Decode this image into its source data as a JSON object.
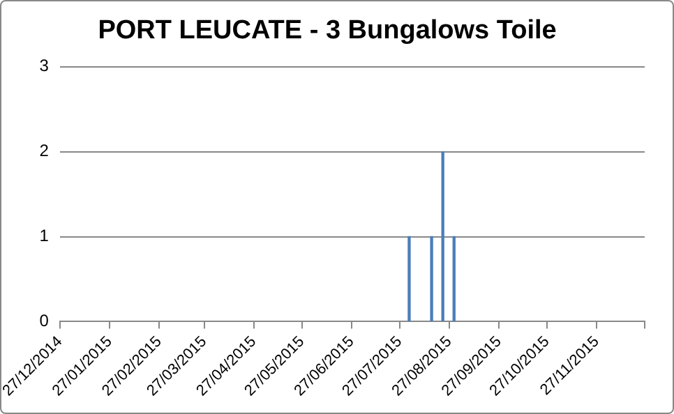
{
  "chart_data": {
    "type": "bar",
    "title": "PORT LEUCATE - 3 Bungalows Toile",
    "x": [
      "2015-08-02",
      "2015-08-16",
      "2015-08-23",
      "2015-08-30"
    ],
    "values": [
      1,
      1,
      2,
      1
    ],
    "color": "#4a7ebb",
    "xlim": [
      "2014-12-27",
      "2015-12-27"
    ],
    "xticks": [
      {
        "value": "2014-12-27",
        "label": "27/12/2014"
      },
      {
        "value": "2015-01-27",
        "label": "27/01/2015"
      },
      {
        "value": "2015-02-27",
        "label": "27/02/2015"
      },
      {
        "value": "2015-03-27",
        "label": "27/03/2015"
      },
      {
        "value": "2015-04-27",
        "label": "27/04/2015"
      },
      {
        "value": "2015-05-27",
        "label": "27/05/2015"
      },
      {
        "value": "2015-06-27",
        "label": "27/06/2015"
      },
      {
        "value": "2015-07-27",
        "label": "27/07/2015"
      },
      {
        "value": "2015-08-27",
        "label": "27/08/2015"
      },
      {
        "value": "2015-09-27",
        "label": "27/09/2015"
      },
      {
        "value": "2015-10-27",
        "label": "27/10/2015"
      },
      {
        "value": "2015-11-27",
        "label": "27/11/2015"
      },
      {
        "value": "2015-12-27",
        "label": null
      }
    ],
    "ylim": [
      0,
      3
    ],
    "yticks": [
      0,
      1,
      2,
      3
    ],
    "grid": "y",
    "legend": false
  }
}
